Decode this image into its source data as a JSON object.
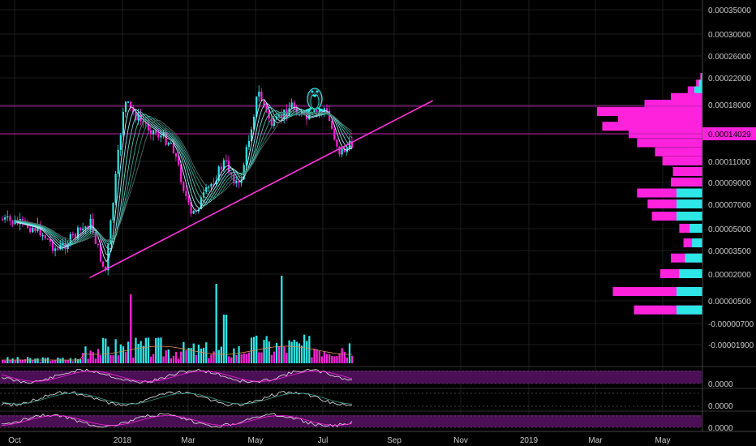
{
  "chart_data": {
    "type": "candlestick",
    "title": "",
    "price_axis_labels": [
      "0.00035000",
      "0.00030000",
      "0.00026000",
      "0.00022000",
      "0.00018000",
      "0.00014029",
      "0.00011000",
      "0.00009000",
      "0.00007000",
      "0.00005000",
      "0.00003500",
      "0.00002000",
      "0.00000500",
      "-0.00000700",
      "-0.00001900"
    ],
    "indicator_axis_labels": [
      "0.0000",
      "0.0000",
      "0.0000"
    ],
    "x_labels": [
      "Oct",
      "2018",
      "Mar",
      "May",
      "Jul",
      "Sep",
      "Nov",
      "2019",
      "Mar",
      "May"
    ],
    "last_price": "0.00014029",
    "horizontal_levels": [
      0.000178,
      0.00014029
    ],
    "trendline": {
      "from": [
        "Dec 2017",
        1.8e-05
      ],
      "to": [
        "Oct 2018",
        0.000186
      ]
    },
    "ohlc_keypoints": [
      {
        "date": "Sep 2017",
        "price": 6e-05
      },
      {
        "date": "Oct 2017",
        "price": 5e-05
      },
      {
        "date": "Nov 2017",
        "price": 3.5e-05
      },
      {
        "date": "Dec 2017",
        "price": 2e-05
      },
      {
        "date": "Dec 2017",
        "price": 5.5e-05
      },
      {
        "date": "Jan 2018",
        "price": 0.00016
      },
      {
        "date": "Jan 2018",
        "price": 0.000185
      },
      {
        "date": "Feb 2018",
        "price": 0.00013
      },
      {
        "date": "Feb 2018",
        "price": 0.00014
      },
      {
        "date": "Mar 2018",
        "price": 8e-05
      },
      {
        "date": "Mar 2018",
        "price": 6e-05
      },
      {
        "date": "Apr 2018",
        "price": 8.5e-05
      },
      {
        "date": "Apr 2018",
        "price": 0.00011
      },
      {
        "date": "May 2018",
        "price": 0.00015
      },
      {
        "date": "May 2018",
        "price": 0.0002
      },
      {
        "date": "Jun 2018",
        "price": 0.00016
      },
      {
        "date": "Jun 2018",
        "price": 0.00018
      },
      {
        "date": "Jul 2018",
        "price": 0.00012
      },
      {
        "date": "Jul 2018",
        "price": 0.000175
      },
      {
        "date": "Aug 2018",
        "price": 0.00014
      }
    ],
    "volume_profile_bins": [
      {
        "price": 0.00022,
        "volume": 2
      },
      {
        "price": 0.00021,
        "volume": 6
      },
      {
        "price": 0.0002,
        "volume": 14
      },
      {
        "price": 0.00019,
        "volume": 30
      },
      {
        "price": 0.00018,
        "volume": 55
      },
      {
        "price": 0.00017,
        "volume": 100
      },
      {
        "price": 0.00016,
        "volume": 80
      },
      {
        "price": 0.00015,
        "volume": 95
      },
      {
        "price": 0.00014,
        "volume": 70
      },
      {
        "price": 0.00013,
        "volume": 62
      },
      {
        "price": 0.00012,
        "volume": 45
      },
      {
        "price": 0.00011,
        "volume": 38
      },
      {
        "price": 0.0001,
        "volume": 28
      },
      {
        "price": 9e-05,
        "volume": 30
      },
      {
        "price": 8e-05,
        "volume": 62
      },
      {
        "price": 7e-05,
        "volume": 52
      },
      {
        "price": 6e-05,
        "volume": 48
      },
      {
        "price": 5e-05,
        "volume": 22
      },
      {
        "price": 4e-05,
        "volume": 18
      },
      {
        "price": 3e-05,
        "volume": 30
      },
      {
        "price": 2e-05,
        "volume": 40
      },
      {
        "price": 1e-05,
        "volume": 85
      },
      {
        "price": 0.0,
        "volume": 65
      }
    ],
    "colors": {
      "up": "#2ee6e6",
      "down": "#ff22dd",
      "level": "#c21fb3",
      "trendline": "#ff33dd",
      "volume_profile": "#ff22dd",
      "grid": "#1d1d1d",
      "band": "#4a0f55"
    }
  }
}
